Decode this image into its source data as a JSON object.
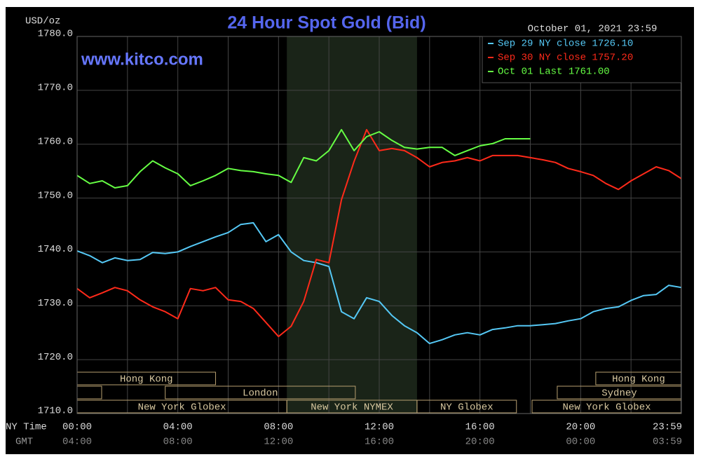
{
  "chart_data": {
    "type": "line",
    "title": "24 Hour Spot Gold (Bid)",
    "timestamp": "October 01, 2021 23:59",
    "watermark": "www.kitco.com",
    "y_label": "USD/oz",
    "x_label": "NY Time",
    "x2_label": "GMT",
    "xlim": [
      0,
      24
    ],
    "ylim": [
      1710,
      1780
    ],
    "yticks": [
      {
        "value": 1710,
        "label": "1710.0"
      },
      {
        "value": 1720,
        "label": "1720.0"
      },
      {
        "value": 1730,
        "label": "1730.0"
      },
      {
        "value": 1740,
        "label": "1740.0"
      },
      {
        "value": 1750,
        "label": "1750.0"
      },
      {
        "value": 1760,
        "label": "1760.0"
      },
      {
        "value": 1770,
        "label": "1770.0"
      },
      {
        "value": 1780,
        "label": "1780.0"
      }
    ],
    "xticks": [
      {
        "value": 0,
        "label": "00:00"
      },
      {
        "value": 4,
        "label": "04:00"
      },
      {
        "value": 8,
        "label": "08:00"
      },
      {
        "value": 12,
        "label": "12:00"
      },
      {
        "value": 16,
        "label": "16:00"
      },
      {
        "value": 20,
        "label": "20:00"
      },
      {
        "value": 23.983,
        "label": "23:59"
      }
    ],
    "x2ticks": [
      {
        "value": 0,
        "label": "04:00"
      },
      {
        "value": 4,
        "label": "08:00"
      },
      {
        "value": 8,
        "label": "12:00"
      },
      {
        "value": 12,
        "label": "16:00"
      },
      {
        "value": 16,
        "label": "20:00"
      },
      {
        "value": 20,
        "label": "00:00"
      },
      {
        "value": 23.983,
        "label": "03:59"
      }
    ],
    "xminorticks": [
      2,
      6,
      10,
      14,
      18,
      22
    ],
    "grid": true,
    "legend": "top-right",
    "x": [
      0,
      0.5,
      1,
      1.5,
      2,
      2.5,
      3,
      3.5,
      4,
      4.5,
      5,
      5.5,
      6,
      6.5,
      7,
      7.5,
      8,
      8.5,
      9,
      9.5,
      10,
      10.5,
      11,
      11.5,
      12,
      12.5,
      13,
      13.5,
      14,
      14.5,
      15,
      15.5,
      16,
      16.5,
      17,
      17.5,
      18,
      18.5,
      19,
      19.5,
      20,
      20.5,
      21,
      21.5,
      22,
      22.5,
      23,
      23.5,
      24
    ],
    "series": [
      {
        "name": "Sep 29 NY close 1726.10",
        "color": "#55c8f5",
        "values": [
          1740.2,
          1739.3,
          1738,
          1738.9,
          1738.4,
          1738.6,
          1739.9,
          1739.7,
          1740,
          1741,
          1741.9,
          1742.8,
          1743.6,
          1745.1,
          1745.4,
          1741.9,
          1743.2,
          1740,
          1738.4,
          1738,
          1737.3,
          1728.9,
          1727.6,
          1731.5,
          1730.8,
          1728.2,
          1726.3,
          1725,
          1723,
          1723.7,
          1724.6,
          1725,
          1724.6,
          1725.6,
          1725.9,
          1726.3,
          1726.3,
          1726.5,
          1726.7,
          1727.2,
          1727.6,
          1728.9,
          1729.5,
          1729.8,
          1731,
          1731.9,
          1732.1,
          1733.8,
          1733.4
        ]
      },
      {
        "name": "Sep 30 NY close 1757.20",
        "color": "#ff2a1a",
        "values": [
          1733.2,
          1731.5,
          1732.4,
          1733.4,
          1732.8,
          1731.1,
          1729.8,
          1728.9,
          1727.6,
          1733.2,
          1732.8,
          1733.4,
          1731.1,
          1730.8,
          1729.5,
          1726.9,
          1724.3,
          1726.2,
          1730.8,
          1738.6,
          1738,
          1749.7,
          1756.8,
          1762.7,
          1758.8,
          1759.2,
          1758.8,
          1757.5,
          1755.8,
          1756.6,
          1756.9,
          1757.5,
          1756.9,
          1757.9,
          1757.9,
          1757.9,
          1757.5,
          1757.1,
          1756.6,
          1755.5,
          1754.9,
          1754.2,
          1752.7,
          1751.6,
          1753.2,
          1754.5,
          1755.8,
          1755.1,
          1753.6
        ]
      },
      {
        "name": "Oct 01 Last 1761.00",
        "color": "#66ff44",
        "values": [
          1754.2,
          1752.7,
          1753.2,
          1751.9,
          1752.3,
          1754.9,
          1756.9,
          1755.6,
          1754.5,
          1752.3,
          1753.2,
          1754.2,
          1755.5,
          1755.1,
          1754.9,
          1754.5,
          1754.2,
          1752.9,
          1757.5,
          1756.9,
          1758.8,
          1762.7,
          1758.8,
          1761.4,
          1762.3,
          1760.7,
          1759.4,
          1759.1,
          1759.4,
          1759.4,
          1757.9,
          1758.8,
          1759.7,
          1760.1,
          1761,
          1761,
          1761,
          null,
          null,
          null,
          null,
          null,
          null,
          null,
          null,
          null,
          null,
          null,
          null
        ]
      }
    ],
    "sessions": [
      [
        {
          "label": "Hong Kong",
          "start": 0,
          "end": 5.5
        },
        {
          "label": "Hong Kong",
          "start": 20.6,
          "end": 24
        }
      ],
      [
        {
          "label": "London",
          "start": 3.5,
          "end": 11.05
        },
        {
          "label": "Sydney",
          "start": 19.07,
          "end": 24
        }
      ],
      [
        {
          "label": "New York Globex",
          "start": 0,
          "end": 8.33
        },
        {
          "label": "New York NYMEX",
          "start": 8.33,
          "end": 13.5
        },
        {
          "label": "NY Globex",
          "start": 13.5,
          "end": 17.45
        },
        {
          "label": "New York Globex",
          "start": 18.07,
          "end": 24
        }
      ]
    ]
  }
}
